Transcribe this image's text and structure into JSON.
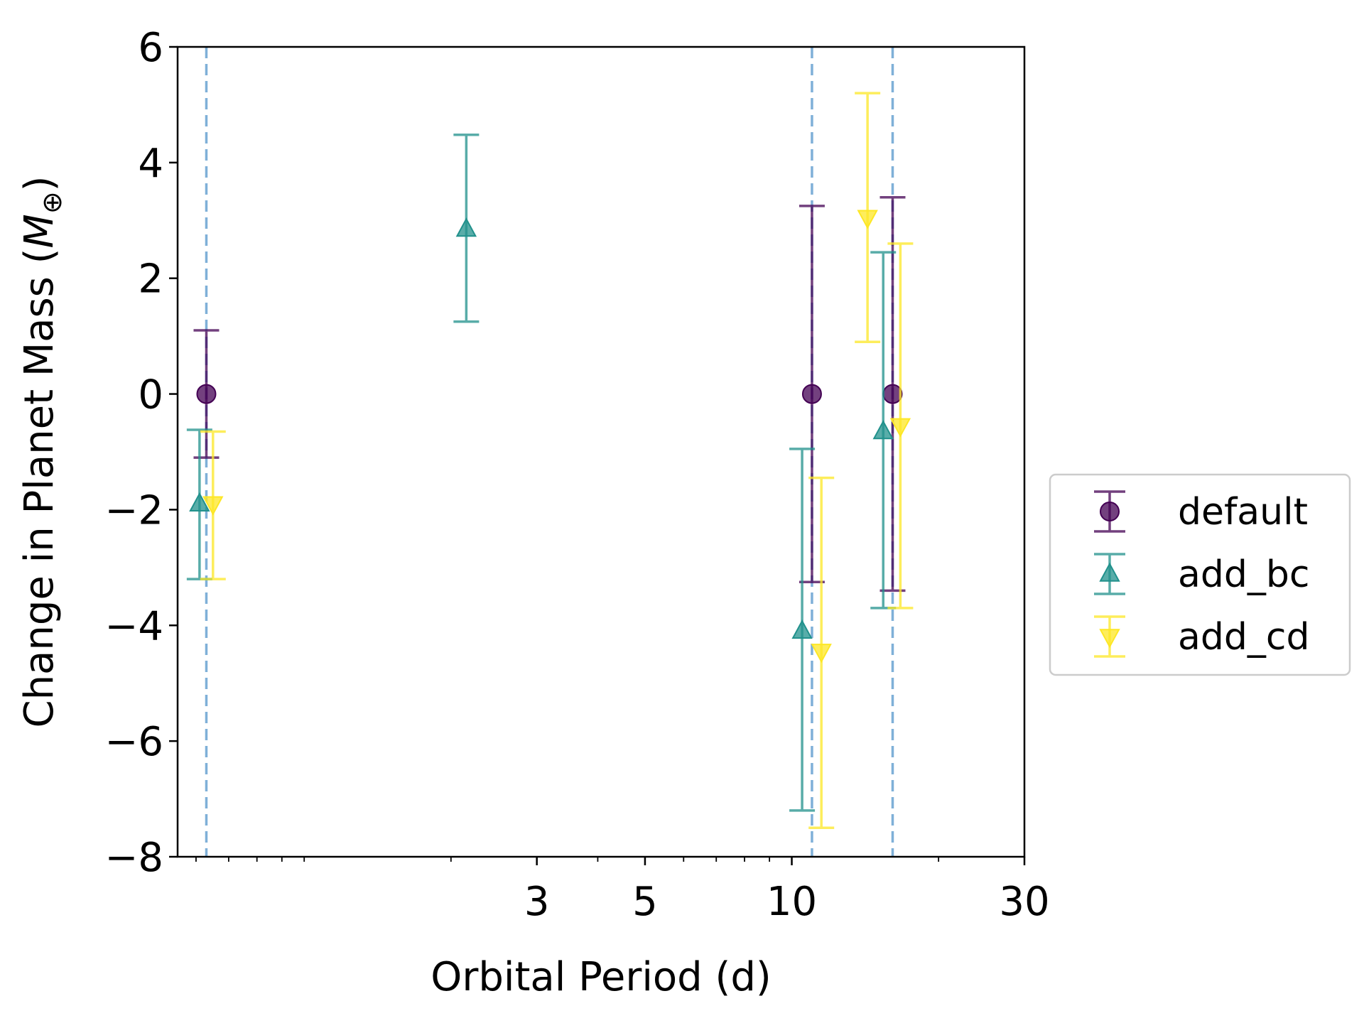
{
  "chart_data": {
    "type": "errorbar",
    "xlabel": "Orbital Period (d)",
    "ylabel_main": "Change in Planet Mass (",
    "ylabel_sym": "M",
    "ylabel_sub": "⊕",
    "ylabel_close": ")",
    "xscale": "log",
    "xlim": [
      0.55,
      30
    ],
    "ylim": [
      -8,
      6
    ],
    "xticks": [
      {
        "value": 3,
        "label": "3"
      },
      {
        "value": 5,
        "label": "5"
      },
      {
        "value": 10,
        "label": "10"
      },
      {
        "value": 30,
        "label": "30"
      }
    ],
    "yticks": [
      {
        "value": 6,
        "label": "6"
      },
      {
        "value": 4,
        "label": "4"
      },
      {
        "value": 2,
        "label": "2"
      },
      {
        "value": 0,
        "label": "0"
      },
      {
        "value": -2,
        "label": "−2"
      },
      {
        "value": -4,
        "label": "−4"
      },
      {
        "value": -6,
        "label": "−6"
      },
      {
        "value": -8,
        "label": "−8"
      }
    ],
    "vlines": [
      0.63,
      11.0,
      16.1
    ],
    "vline_color": "#7fb0d8",
    "legend_position": "outside-right",
    "series": [
      {
        "name": "default",
        "color": "#440154",
        "marker": "circle",
        "points": [
          {
            "x": 0.63,
            "y": 0.0,
            "ylo": -1.1,
            "yhi": 1.1
          },
          {
            "x": 11.0,
            "y": 0.0,
            "ylo": -3.25,
            "yhi": 3.25
          },
          {
            "x": 16.1,
            "y": 0.0,
            "ylo": -3.4,
            "yhi": 3.4
          }
        ]
      },
      {
        "name": "add_bc",
        "color": "#21918c",
        "marker": "triangle-up",
        "points": [
          {
            "x": 0.61,
            "y": -1.9,
            "ylo": -3.2,
            "yhi": -0.62
          },
          {
            "x": 2.15,
            "y": 2.85,
            "ylo": 1.25,
            "yhi": 4.48
          },
          {
            "x": 10.5,
            "y": -4.1,
            "ylo": -7.2,
            "yhi": -0.95
          },
          {
            "x": 15.4,
            "y": -0.65,
            "ylo": -3.7,
            "yhi": 2.45
          }
        ]
      },
      {
        "name": "add_cd",
        "color": "#fde725",
        "marker": "triangle-down",
        "points": [
          {
            "x": 0.65,
            "y": -1.9,
            "ylo": -3.2,
            "yhi": -0.65
          },
          {
            "x": 11.5,
            "y": -4.45,
            "ylo": -7.5,
            "yhi": -1.45
          },
          {
            "x": 14.3,
            "y": 3.05,
            "ylo": 0.9,
            "yhi": 5.2
          },
          {
            "x": 16.7,
            "y": -0.55,
            "ylo": -3.7,
            "yhi": 2.6
          }
        ]
      }
    ]
  }
}
